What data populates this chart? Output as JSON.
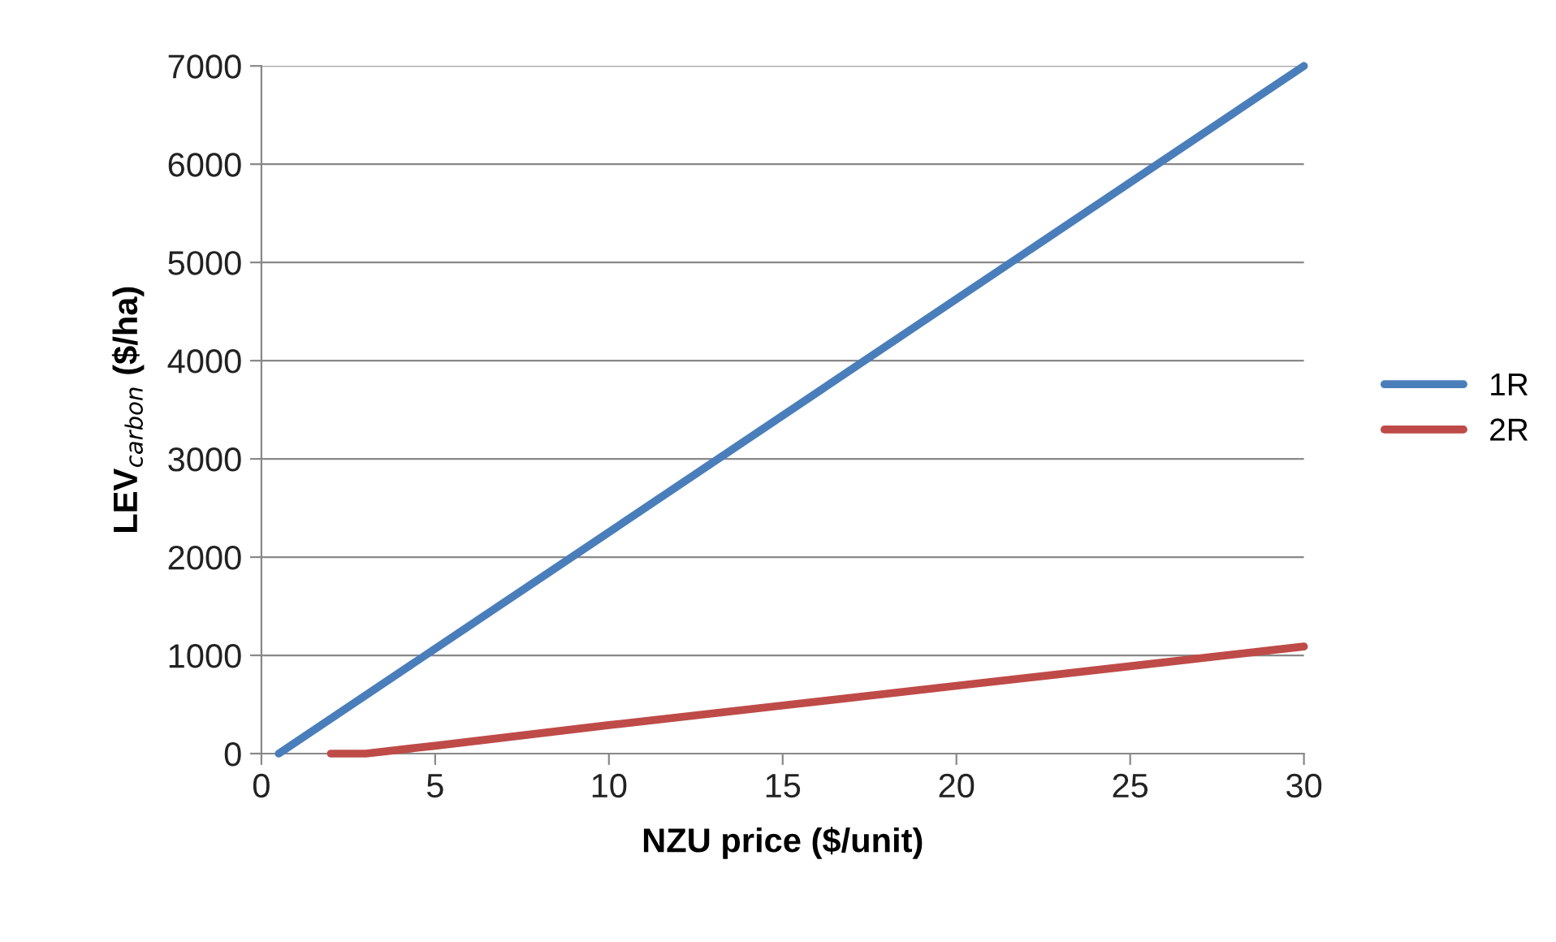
{
  "chart_data": {
    "type": "line",
    "xlabel": "NZU price ($/unit)",
    "ylabel": "LEV$_{carbon}$ ($/ha)",
    "series": [
      {
        "name": "1R",
        "color": "#4a7ebb",
        "x": [
          0.5,
          30
        ],
        "values": [
          0,
          7000
        ]
      },
      {
        "name": "2R",
        "color": "#be4b48",
        "x": [
          2,
          3,
          5,
          10,
          15,
          20,
          25,
          30
        ],
        "values": [
          0,
          0,
          80,
          290,
          490,
          690,
          890,
          1090
        ]
      }
    ],
    "xlim": [
      0,
      30
    ],
    "xticks": [
      0,
      5,
      10,
      15,
      20,
      25,
      30
    ],
    "ylim": [
      0,
      7000
    ],
    "yticks": [
      0,
      1000,
      2000,
      3000,
      4000,
      5000,
      6000,
      7000
    ],
    "grid": "y",
    "legend": "right",
    "marker": "none",
    "line_style": "solid"
  }
}
